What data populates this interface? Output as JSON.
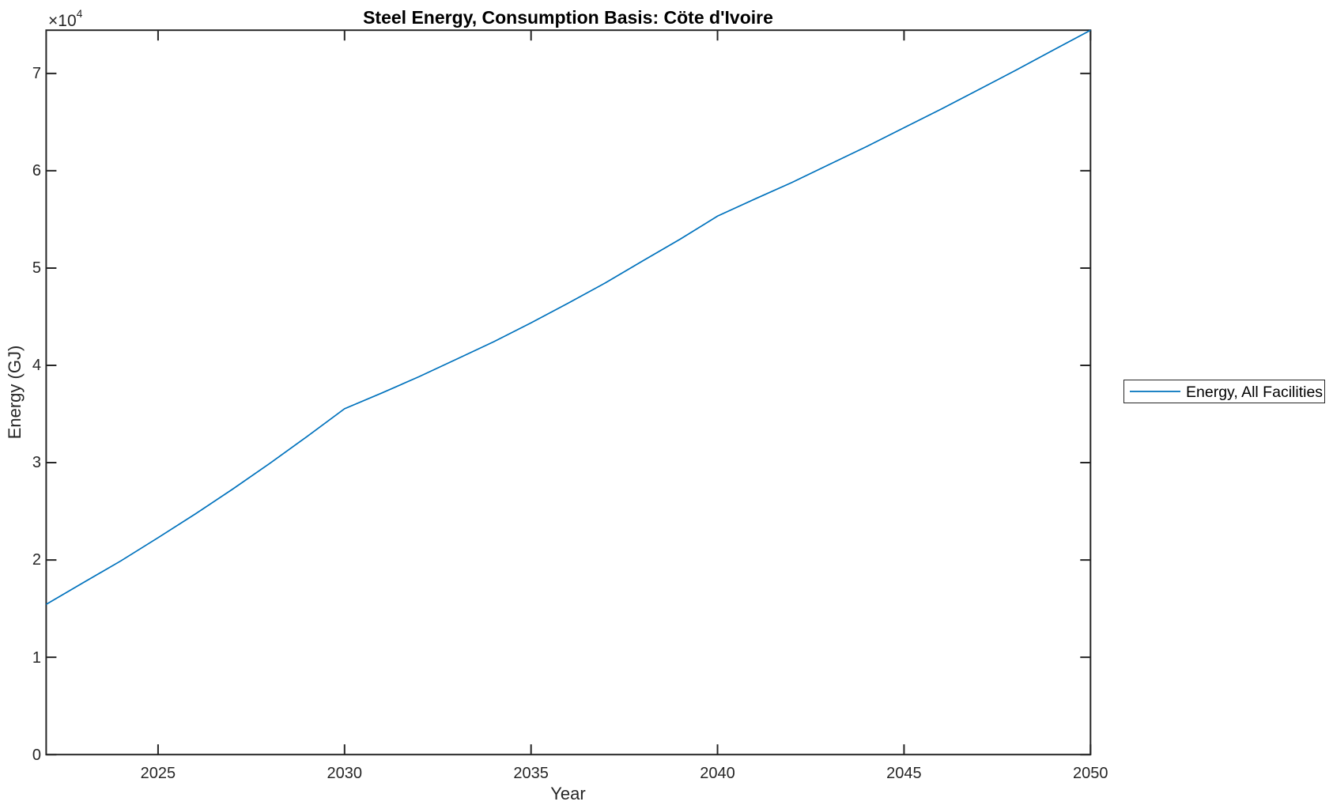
{
  "figure": {
    "background_color": "#ffffff",
    "axis_color": "#262626"
  },
  "chart_data": {
    "type": "line",
    "title": "Steel Energy, Consumption Basis: Cöte d'Ivoire",
    "xlabel": "Year",
    "ylabel": "Energy (GJ)",
    "y_axis_multiplier": {
      "base": "×10",
      "exponent": "4"
    },
    "xlim": [
      2022,
      2050
    ],
    "ylim": [
      0,
      74440
    ],
    "x_ticks": [
      2025,
      2030,
      2035,
      2040,
      2045,
      2050
    ],
    "x_tick_labels": [
      "2025",
      "2030",
      "2035",
      "2040",
      "2045",
      "2050"
    ],
    "y_ticks": [
      0,
      10000,
      20000,
      30000,
      40000,
      50000,
      60000,
      70000
    ],
    "y_tick_labels": [
      "0",
      "1",
      "2",
      "3",
      "4",
      "5",
      "6",
      "7"
    ],
    "grid": false,
    "tick_direction": "in",
    "legend": {
      "position": "right-outside",
      "entries": [
        {
          "label": "Energy, All Facilities",
          "color": "#0072BD"
        }
      ]
    },
    "series": [
      {
        "name": "Energy, All Facilities",
        "color": "#0072BD",
        "x": [
          2022,
          2023,
          2024,
          2025,
          2026,
          2027,
          2028,
          2029,
          2030,
          2031,
          2032,
          2033,
          2034,
          2035,
          2036,
          2037,
          2038,
          2039,
          2040,
          2041,
          2042,
          2043,
          2044,
          2045,
          2046,
          2047,
          2048,
          2049,
          2050
        ],
        "values": [
          15440,
          17680,
          19900,
          22290,
          24730,
          27280,
          29940,
          32700,
          35540,
          37160,
          38840,
          40630,
          42430,
          44370,
          46400,
          48490,
          50750,
          52970,
          55340,
          57090,
          58800,
          60650,
          62490,
          64420,
          66340,
          68330,
          70330,
          72390,
          74440
        ]
      }
    ]
  }
}
